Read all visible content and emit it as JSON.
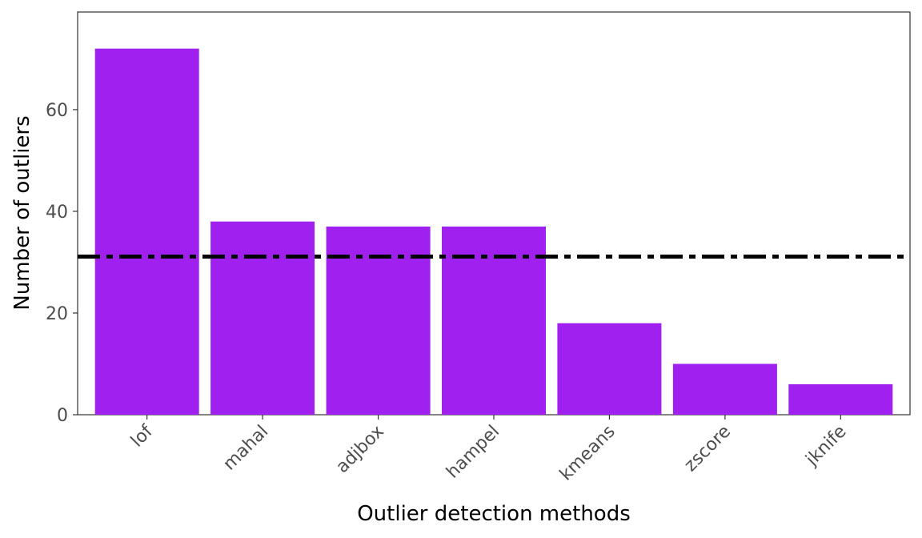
{
  "chart_data": {
    "type": "bar",
    "title": "",
    "xlabel": "Outlier detection methods",
    "ylabel": "Number of outliers",
    "categories": [
      "lof",
      "mahal",
      "adjbox",
      "hampel",
      "kmeans",
      "zscore",
      "jknife"
    ],
    "values": [
      72,
      38,
      37,
      37,
      18,
      10,
      6
    ],
    "ylim": [
      0,
      79.2
    ],
    "yticks": [
      0,
      20,
      40,
      60
    ],
    "reference_line": {
      "value": 31.1,
      "style": "dashdot",
      "color": "#000000"
    },
    "bar_color": "#A020F0",
    "grid": false,
    "legend": "none"
  }
}
